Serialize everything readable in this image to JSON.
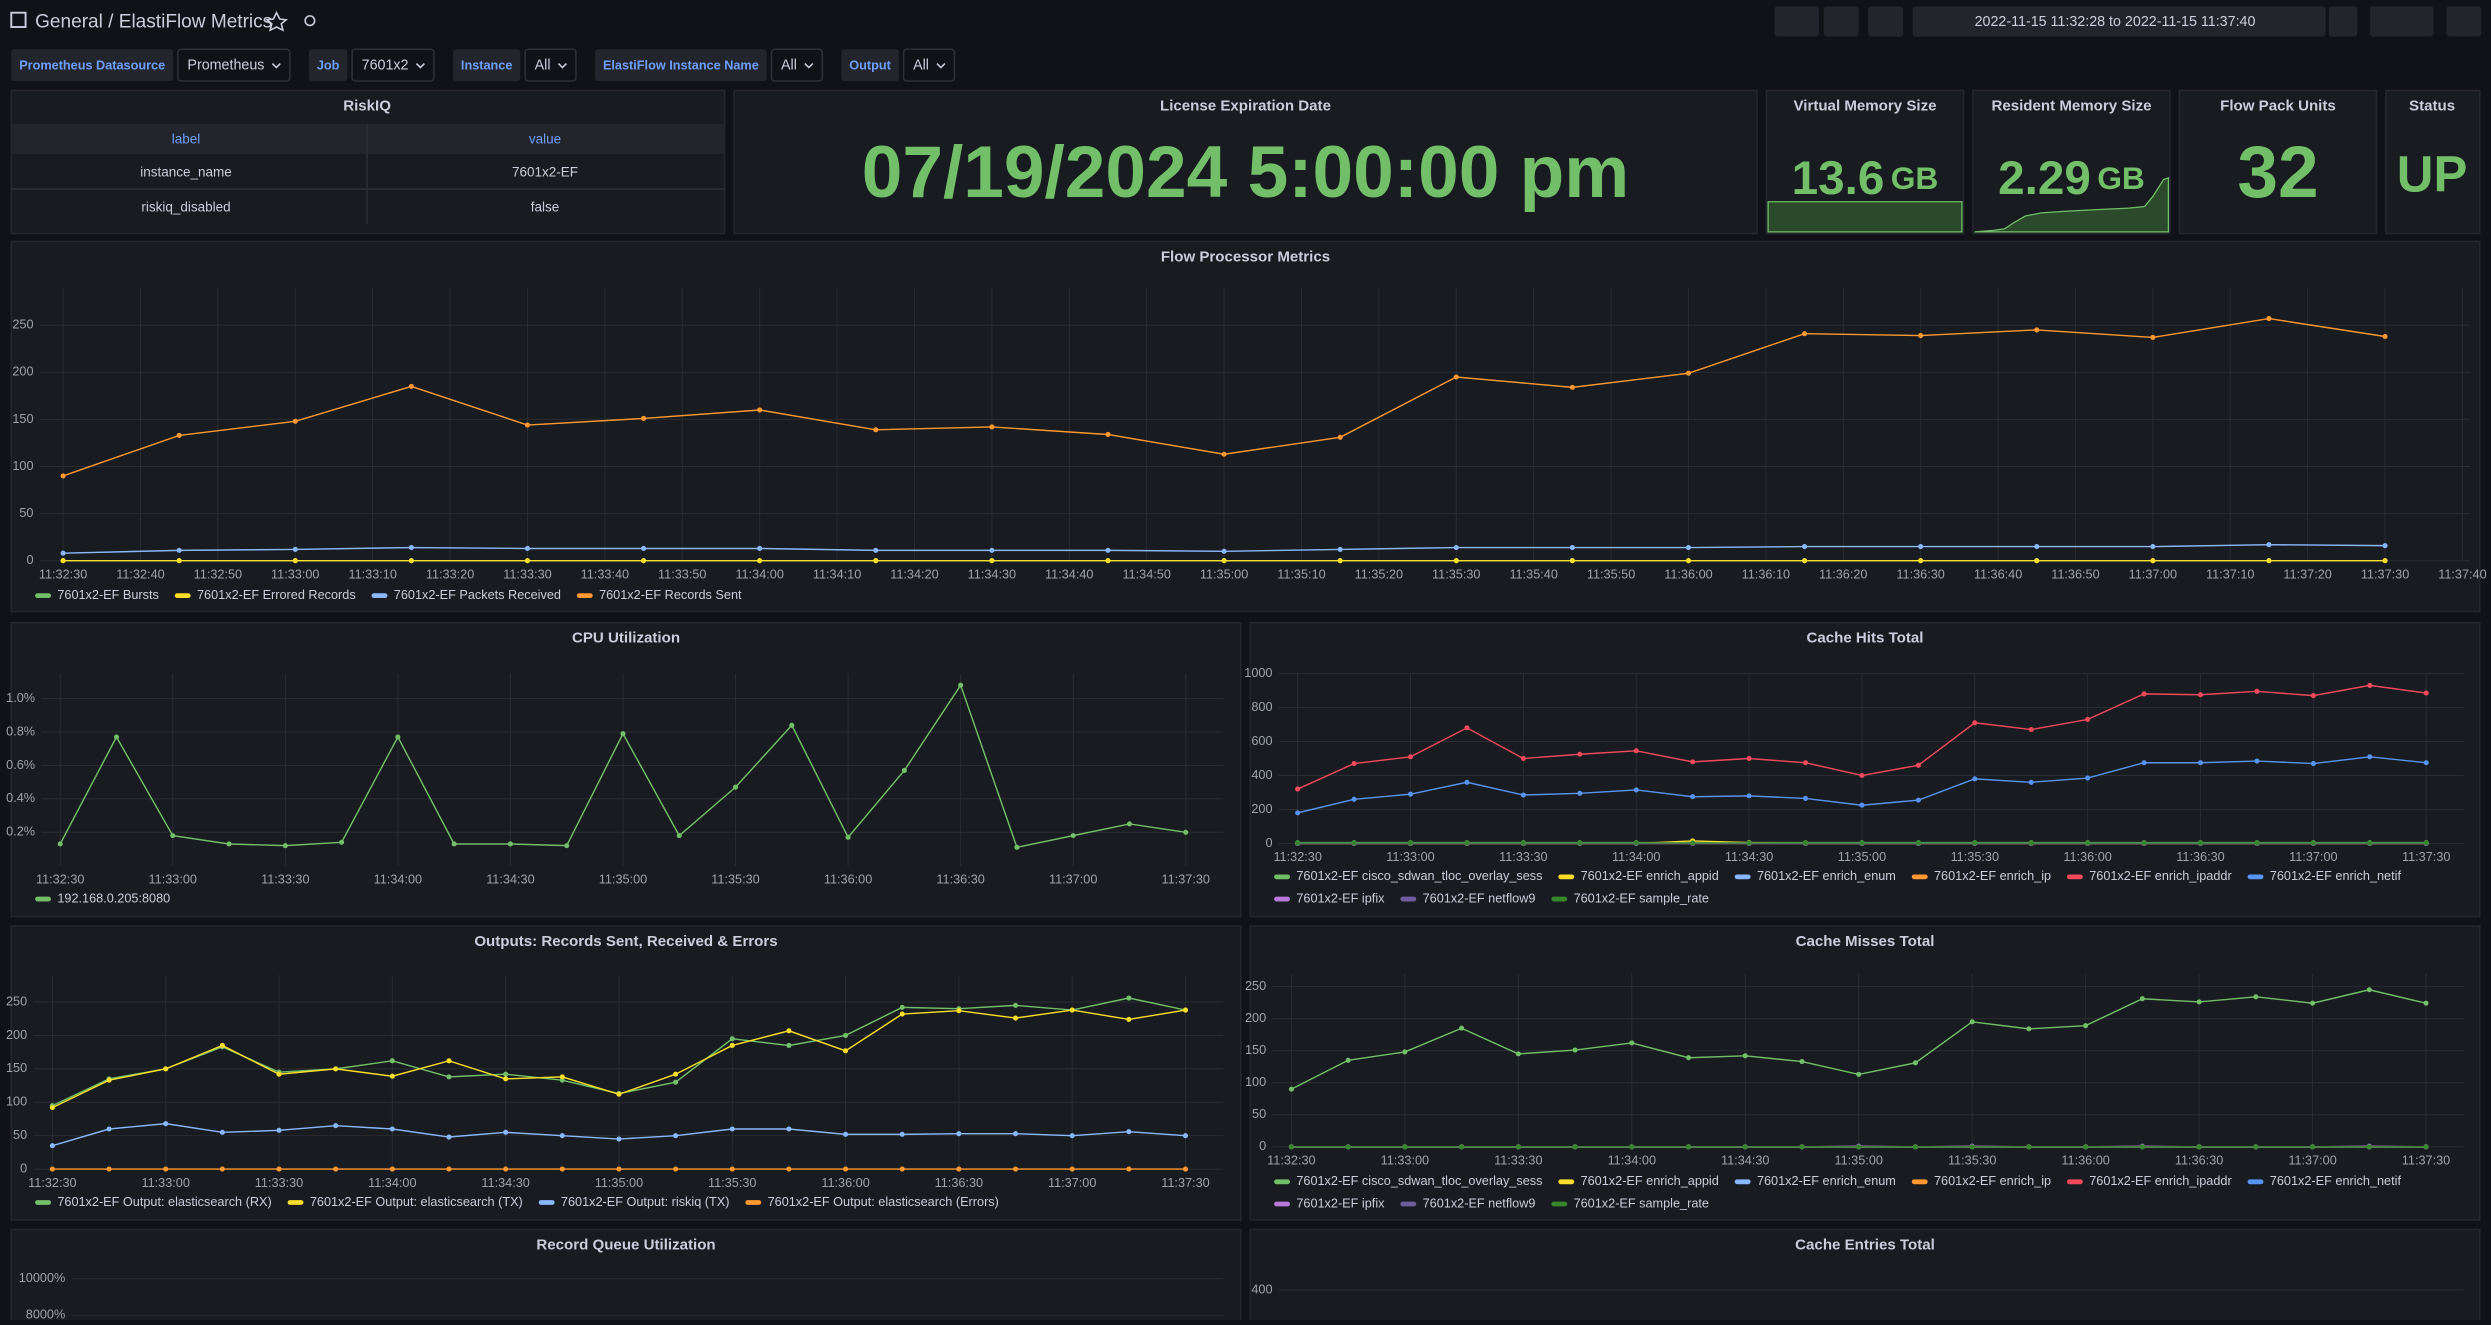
{
  "header": {
    "folder": "General",
    "title": "/ ElastiFlow Metrics",
    "time_range": "2022-11-15 11:32:28 to 2022-11-15 11:37:40"
  },
  "variables": [
    {
      "label": "Prometheus Datasource",
      "value": "Prometheus"
    },
    {
      "label": "Job",
      "value": "7601x2"
    },
    {
      "label": "Instance",
      "value": "All"
    },
    {
      "label": "ElastiFlow Instance Name",
      "value": "All"
    },
    {
      "label": "Output",
      "value": "All"
    }
  ],
  "riskiq": {
    "title": "RiskIQ",
    "columns": [
      "label",
      "value"
    ],
    "rows": [
      [
        "instance_name",
        "7601x2-EF"
      ],
      [
        "riskiq_disabled",
        "false"
      ]
    ]
  },
  "stats": [
    {
      "title": "License Expiration Date",
      "value": "07/19/2024 5:00:00 pm"
    },
    {
      "title": "Virtual Memory Size",
      "value": 13.6,
      "unit": "GB"
    },
    {
      "title": "Resident Memory Size",
      "value": 2.29,
      "unit": "GB"
    },
    {
      "title": "Flow Pack Units",
      "value": 32
    },
    {
      "title": "Status",
      "value": "UP"
    }
  ],
  "chart_data": [
    {
      "type": "line",
      "title": "Flow Processor Metrics",
      "x": [
        "11:32:30",
        "11:32:45",
        "11:33:00",
        "11:33:15",
        "11:33:30",
        "11:33:45",
        "11:34:00",
        "11:34:15",
        "11:34:30",
        "11:34:45",
        "11:35:00",
        "11:35:15",
        "11:35:30",
        "11:35:45",
        "11:36:00",
        "11:36:15",
        "11:36:30",
        "11:36:45",
        "11:37:00",
        "11:37:15",
        "11:37:30"
      ],
      "xlim": [
        "11:32:27",
        "11:37:41"
      ],
      "xticks": [
        "11:32:30",
        "11:32:40",
        "11:32:50",
        "11:33:00",
        "11:33:10",
        "11:33:20",
        "11:33:30",
        "11:33:40",
        "11:33:50",
        "11:34:00",
        "11:34:10",
        "11:34:20",
        "11:34:30",
        "11:34:40",
        "11:34:50",
        "11:35:00",
        "11:35:10",
        "11:35:20",
        "11:35:30",
        "11:35:40",
        "11:35:50",
        "11:36:00",
        "11:36:10",
        "11:36:20",
        "11:36:30",
        "11:36:40",
        "11:36:50",
        "11:37:00",
        "11:37:10",
        "11:37:20",
        "11:37:30",
        "11:37:40"
      ],
      "ylim": [
        0,
        290
      ],
      "yticks": [
        0,
        50,
        100,
        150,
        200,
        250
      ],
      "series": [
        {
          "name": "7601x2-EF Bursts",
          "color": "#73bf69",
          "values": [
            0,
            0,
            0,
            0,
            0,
            0,
            0,
            0,
            0,
            0,
            0,
            0,
            0,
            0,
            0,
            0,
            0,
            0,
            0,
            0,
            0
          ]
        },
        {
          "name": "7601x2-EF Errored Records",
          "color": "#fade2a",
          "values": [
            0,
            0,
            0,
            0,
            0,
            0,
            0,
            0,
            0,
            0,
            0,
            0,
            0,
            0,
            0,
            0,
            0,
            0,
            0,
            0,
            0
          ]
        },
        {
          "name": "7601x2-EF Packets Received",
          "color": "#8ab8ff",
          "values": [
            8,
            11,
            12,
            14,
            13,
            13,
            13,
            11,
            11,
            11,
            10,
            12,
            14,
            14,
            14,
            15,
            15,
            15,
            15,
            17,
            16
          ]
        },
        {
          "name": "7601x2-EF Records Sent",
          "color": "#ff9830",
          "values": [
            90,
            133,
            148,
            185,
            144,
            151,
            160,
            139,
            142,
            134,
            113,
            131,
            195,
            184,
            199,
            241,
            239,
            245,
            237,
            257,
            238
          ]
        }
      ]
    },
    {
      "type": "line",
      "title": "CPU Utilization",
      "x": [
        "11:32:30",
        "11:32:45",
        "11:33:00",
        "11:33:15",
        "11:33:30",
        "11:33:45",
        "11:34:00",
        "11:34:15",
        "11:34:30",
        "11:34:45",
        "11:35:00",
        "11:35:15",
        "11:35:30",
        "11:35:45",
        "11:36:00",
        "11:36:15",
        "11:36:30",
        "11:36:45",
        "11:37:00",
        "11:37:15",
        "11:37:30"
      ],
      "xlim": [
        "11:32:25",
        "11:37:40"
      ],
      "xticks": [
        "11:32:30",
        "11:33:00",
        "11:33:30",
        "11:34:00",
        "11:34:30",
        "11:35:00",
        "11:35:30",
        "11:36:00",
        "11:36:30",
        "11:37:00",
        "11:37:30"
      ],
      "ylim": [
        0,
        1.15
      ],
      "yticks": [
        {
          "value": 0.2,
          "label": "0.2%"
        },
        {
          "value": 0.4,
          "label": "0.4%"
        },
        {
          "value": 0.6,
          "label": "0.6%"
        },
        {
          "value": 0.8,
          "label": "0.8%"
        },
        {
          "value": 1.0,
          "label": "1.0%"
        }
      ],
      "series": [
        {
          "name": "192.168.0.205:8080",
          "color": "#73bf69",
          "values": [
            0.13,
            0.77,
            0.18,
            0.13,
            0.12,
            0.14,
            0.77,
            0.13,
            0.13,
            0.12,
            0.79,
            0.18,
            0.47,
            0.84,
            0.17,
            0.57,
            1.08,
            0.11,
            0.18,
            0.25,
            0.2
          ]
        }
      ]
    },
    {
      "type": "line",
      "title": "Cache Hits Total",
      "x": [
        "11:32:30",
        "11:32:45",
        "11:33:00",
        "11:33:15",
        "11:33:30",
        "11:33:45",
        "11:34:00",
        "11:34:15",
        "11:34:30",
        "11:34:45",
        "11:35:00",
        "11:35:15",
        "11:35:30",
        "11:35:45",
        "11:36:00",
        "11:36:15",
        "11:36:30",
        "11:36:45",
        "11:37:00",
        "11:37:15",
        "11:37:30"
      ],
      "xlim": [
        "11:32:25",
        "11:37:40"
      ],
      "xticks": [
        "11:32:30",
        "11:33:00",
        "11:33:30",
        "11:34:00",
        "11:34:30",
        "11:35:00",
        "11:35:30",
        "11:36:00",
        "11:36:30",
        "11:37:00",
        "11:37:30"
      ],
      "ylim": [
        0,
        1000
      ],
      "yticks": [
        0,
        200,
        400,
        600,
        800,
        1000
      ],
      "series": [
        {
          "name": "7601x2-EF cisco_sdwan_tloc_overlay_sess",
          "color": "#73bf69",
          "values": [
            5,
            5,
            5,
            5,
            5,
            5,
            5,
            5,
            5,
            5,
            5,
            5,
            5,
            5,
            5,
            5,
            5,
            5,
            5,
            5,
            5
          ]
        },
        {
          "name": "7601x2-EF enrich_appid",
          "color": "#fade2a",
          "values": [
            0,
            0,
            0,
            0,
            0,
            0,
            0,
            15,
            5,
            0,
            0,
            0,
            0,
            0,
            0,
            0,
            0,
            0,
            0,
            0,
            0
          ]
        },
        {
          "name": "7601x2-EF enrich_enum",
          "color": "#8ab8ff",
          "values": [
            2,
            2,
            2,
            2,
            2,
            2,
            2,
            2,
            2,
            2,
            2,
            2,
            2,
            2,
            2,
            2,
            2,
            2,
            2,
            2,
            2
          ]
        },
        {
          "name": "7601x2-EF enrich_ip",
          "color": "#ff9830",
          "values": [
            0,
            0,
            0,
            0,
            0,
            0,
            0,
            0,
            0,
            0,
            0,
            0,
            0,
            0,
            0,
            0,
            0,
            0,
            0,
            0,
            0
          ]
        },
        {
          "name": "7601x2-EF enrich_ipaddr",
          "color": "#f2495c",
          "values": [
            320,
            470,
            510,
            680,
            500,
            525,
            545,
            480,
            500,
            475,
            400,
            460,
            710,
            670,
            730,
            880,
            875,
            895,
            870,
            930,
            885
          ]
        },
        {
          "name": "7601x2-EF enrich_netif",
          "color": "#5794f2",
          "values": [
            180,
            260,
            290,
            360,
            285,
            295,
            315,
            275,
            280,
            265,
            225,
            255,
            380,
            360,
            385,
            475,
            475,
            485,
            470,
            510,
            475
          ]
        },
        {
          "name": "7601x2-EF ipfix",
          "color": "#b877d9",
          "values": [
            0,
            0,
            0,
            0,
            0,
            0,
            0,
            0,
            0,
            0,
            0,
            0,
            0,
            0,
            0,
            0,
            0,
            0,
            0,
            0,
            0
          ]
        },
        {
          "name": "7601x2-EF netflow9",
          "color": "#705da0",
          "values": [
            0,
            0,
            0,
            0,
            0,
            0,
            0,
            0,
            0,
            0,
            0,
            0,
            0,
            0,
            0,
            0,
            0,
            0,
            0,
            0,
            0
          ]
        },
        {
          "name": "7601x2-EF sample_rate",
          "color": "#37872d",
          "values": [
            3,
            3,
            3,
            3,
            3,
            3,
            3,
            3,
            3,
            3,
            3,
            3,
            3,
            3,
            3,
            3,
            3,
            3,
            3,
            3,
            3
          ]
        }
      ]
    },
    {
      "type": "line",
      "title": "Outputs: Records Sent, Received & Errors",
      "x": [
        "11:32:30",
        "11:32:45",
        "11:33:00",
        "11:33:15",
        "11:33:30",
        "11:33:45",
        "11:34:00",
        "11:34:15",
        "11:34:30",
        "11:34:45",
        "11:35:00",
        "11:35:15",
        "11:35:30",
        "11:35:45",
        "11:36:00",
        "11:36:15",
        "11:36:30",
        "11:36:45",
        "11:37:00",
        "11:37:15",
        "11:37:30"
      ],
      "xlim": [
        "11:32:25",
        "11:37:40"
      ],
      "xticks": [
        "11:32:30",
        "11:33:00",
        "11:33:30",
        "11:34:00",
        "11:34:30",
        "11:35:00",
        "11:35:30",
        "11:36:00",
        "11:36:30",
        "11:37:00",
        "11:37:30"
      ],
      "ylim": [
        0,
        290
      ],
      "yticks": [
        0,
        50,
        100,
        150,
        200,
        250
      ],
      "series": [
        {
          "name": "7601x2-EF Output: elasticsearch (RX)",
          "color": "#73bf69",
          "values": [
            95,
            135,
            150,
            183,
            145,
            150,
            162,
            138,
            142,
            133,
            113,
            130,
            195,
            185,
            200,
            242,
            240,
            245,
            238,
            256,
            238
          ]
        },
        {
          "name": "7601x2-EF Output: elasticsearch (TX)",
          "color": "#fade2a",
          "values": [
            92,
            133,
            150,
            185,
            142,
            150,
            139,
            162,
            135,
            138,
            112,
            142,
            185,
            207,
            177,
            232,
            237,
            226,
            238,
            224,
            238
          ]
        },
        {
          "name": "7601x2-EF Output: riskiq (TX)",
          "color": "#8ab8ff",
          "values": [
            35,
            60,
            68,
            55,
            58,
            65,
            60,
            48,
            55,
            50,
            45,
            50,
            60,
            60,
            52,
            52,
            53,
            53,
            50,
            56,
            50
          ]
        },
        {
          "name": "7601x2-EF Output: elasticsearch (Errors)",
          "color": "#ff9830",
          "values": [
            0,
            0,
            0,
            0,
            0,
            0,
            0,
            0,
            0,
            0,
            0,
            0,
            0,
            0,
            0,
            0,
            0,
            0,
            0,
            0,
            0
          ]
        }
      ]
    },
    {
      "type": "line",
      "title": "Cache Misses Total",
      "x": [
        "11:32:30",
        "11:32:45",
        "11:33:00",
        "11:33:15",
        "11:33:30",
        "11:33:45",
        "11:34:00",
        "11:34:15",
        "11:34:30",
        "11:34:45",
        "11:35:00",
        "11:35:15",
        "11:35:30",
        "11:35:45",
        "11:36:00",
        "11:36:15",
        "11:36:30",
        "11:36:45",
        "11:37:00",
        "11:37:15",
        "11:37:30"
      ],
      "xlim": [
        "11:32:25",
        "11:37:40"
      ],
      "xticks": [
        "11:32:30",
        "11:33:00",
        "11:33:30",
        "11:34:00",
        "11:34:30",
        "11:35:00",
        "11:35:30",
        "11:36:00",
        "11:36:30",
        "11:37:00",
        "11:37:30"
      ],
      "ylim": [
        0,
        270
      ],
      "yticks": [
        0,
        50,
        100,
        150,
        200,
        250
      ],
      "series": [
        {
          "name": "7601x2-EF cisco_sdwan_tloc_overlay_sess",
          "color": "#73bf69",
          "values": [
            90,
            135,
            148,
            185,
            145,
            151,
            162,
            139,
            142,
            133,
            113,
            131,
            195,
            184,
            189,
            231,
            226,
            234,
            224,
            245,
            224
          ]
        },
        {
          "name": "7601x2-EF enrich_appid",
          "color": "#fade2a",
          "values": [
            0,
            0,
            0,
            0,
            0,
            0,
            0,
            0,
            0,
            0,
            0,
            0,
            0,
            0,
            0,
            0,
            0,
            0,
            0,
            0,
            0
          ]
        },
        {
          "name": "7601x2-EF enrich_enum",
          "color": "#8ab8ff",
          "values": [
            0,
            0,
            0,
            0,
            0,
            0,
            0,
            0,
            0,
            0,
            0,
            0,
            0,
            0,
            0,
            0,
            0,
            0,
            0,
            0,
            0
          ]
        },
        {
          "name": "7601x2-EF enrich_ip",
          "color": "#ff9830",
          "values": [
            0,
            0,
            0,
            0,
            0,
            0,
            0,
            0,
            0,
            0,
            0,
            0,
            0,
            0,
            0,
            0,
            0,
            0,
            0,
            0,
            0
          ]
        },
        {
          "name": "7601x2-EF enrich_ipaddr",
          "color": "#f2495c",
          "values": [
            0,
            0,
            0,
            0,
            0,
            0,
            0,
            0,
            0,
            0,
            0,
            0,
            0,
            0,
            0,
            0,
            0,
            0,
            0,
            0,
            0
          ]
        },
        {
          "name": "7601x2-EF enrich_netif",
          "color": "#5794f2",
          "values": [
            0,
            0,
            0,
            0,
            0,
            0,
            0,
            0,
            0,
            0,
            0,
            0,
            0,
            0,
            0,
            0,
            0,
            0,
            0,
            0,
            0
          ]
        },
        {
          "name": "7601x2-EF ipfix",
          "color": "#b877d9",
          "values": [
            0,
            0,
            0,
            0,
            0,
            0,
            0,
            0,
            0,
            0,
            1,
            0,
            1,
            0,
            0,
            1,
            0,
            0,
            0,
            1,
            0
          ]
        },
        {
          "name": "7601x2-EF netflow9",
          "color": "#705da0",
          "values": [
            0,
            0,
            0,
            0,
            0,
            0,
            0,
            0,
            0,
            0,
            0,
            0,
            0,
            0,
            0,
            0,
            0,
            0,
            0,
            0,
            0
          ]
        },
        {
          "name": "7601x2-EF sample_rate",
          "color": "#37872d",
          "values": [
            0,
            0,
            0,
            0,
            0,
            0,
            0,
            0,
            0,
            0,
            0,
            0,
            0,
            0,
            0,
            0,
            0,
            0,
            0,
            0,
            0
          ]
        }
      ]
    },
    {
      "type": "line",
      "title": "Record Queue Utilization",
      "ylim": [
        0,
        10700
      ],
      "yticks": [
        {
          "value": 8000,
          "label": "8000%"
        },
        {
          "value": 10000,
          "label": "10000%"
        }
      ]
    },
    {
      "type": "line",
      "title": "Cache Entries Total",
      "ylim": [
        0,
        430
      ],
      "yticks": [
        400
      ]
    }
  ]
}
